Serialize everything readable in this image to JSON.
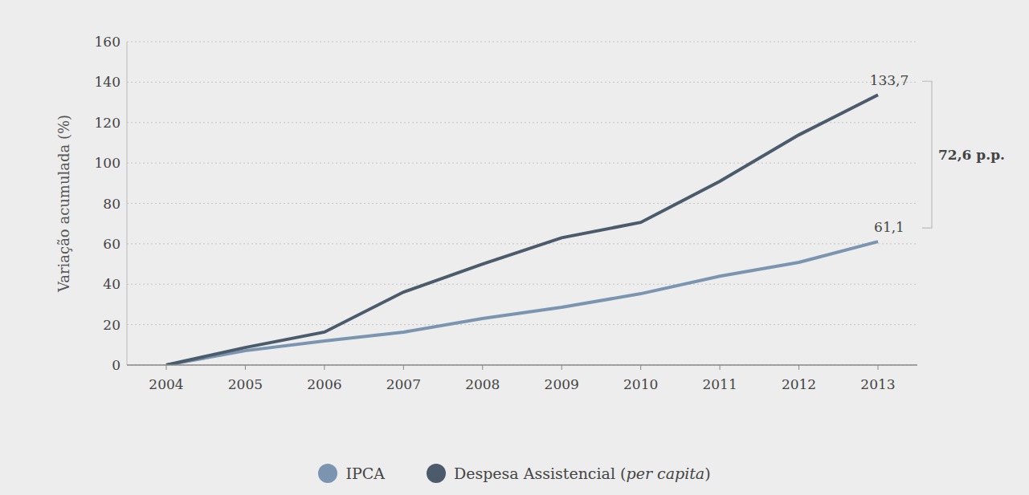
{
  "chart_data": {
    "type": "line",
    "y_label": "Variação acumulada (%)",
    "categories": [
      "2004",
      "2005",
      "2006",
      "2007",
      "2008",
      "2009",
      "2010",
      "2011",
      "2012",
      "2013"
    ],
    "ylim": [
      0,
      160
    ],
    "yticks": [
      0,
      20,
      40,
      60,
      80,
      100,
      120,
      140,
      160
    ],
    "grid": true,
    "legend": "bottom",
    "series": [
      {
        "name": "IPCA",
        "color": "#7b95b0",
        "values": [
          0,
          7.1,
          11.9,
          16.3,
          23,
          28.6,
          35.3,
          44,
          50.8,
          61.1
        ],
        "value_labels": [
          null,
          null,
          null,
          null,
          null,
          null,
          null,
          null,
          null,
          "61,1"
        ]
      },
      {
        "name": "Despesa Assistencial (per capita)",
        "color": "#4b5b6c",
        "values": [
          0,
          8.7,
          16.3,
          36.1,
          50,
          63,
          70.6,
          90.9,
          113.9,
          133.7
        ],
        "value_labels": [
          null,
          null,
          null,
          null,
          null,
          null,
          null,
          null,
          null,
          "133,7"
        ]
      }
    ],
    "annotations": [
      {
        "text": "72,6 p.p."
      }
    ]
  }
}
